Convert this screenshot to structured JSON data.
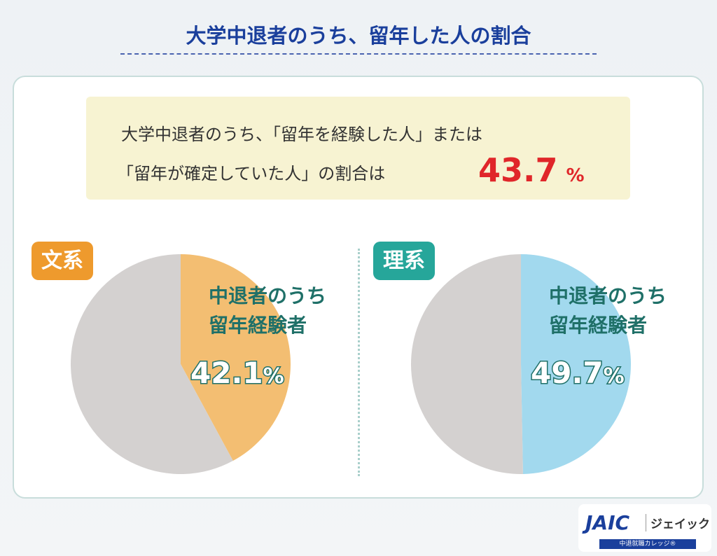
{
  "title": "大学中退者のうち、留年した人の割合",
  "summary": {
    "line1": "大学中退者のうち、「留年を経験した人」または",
    "line2": "「留年が確定していた人」の割合は",
    "value": "43.7",
    "unit": "%"
  },
  "chart_data": [
    {
      "type": "pie",
      "category": "文系",
      "label": "中退者のうち\n留年経験者",
      "label_line1": "中退者のうち",
      "label_line2": "留年経験者",
      "value": 42.1,
      "value_text": "42.1",
      "unit": "%",
      "slices": [
        {
          "value": 42.1,
          "color": "#f3be72"
        },
        {
          "value": 57.9,
          "color": "#d4d1d0"
        }
      ],
      "badge_color": "#ee9a2d"
    },
    {
      "type": "pie",
      "category": "理系",
      "label_line1": "中退者のうち",
      "label_line2": "留年経験者",
      "value": 49.7,
      "value_text": "49.7",
      "unit": "%",
      "slices": [
        {
          "value": 49.7,
          "color": "#a2d9ee"
        },
        {
          "value": 50.3,
          "color": "#d4d1d0"
        }
      ],
      "badge_color": "#26a69a"
    }
  ],
  "logo": {
    "brand": "JAIC",
    "kana": "ジェイック",
    "tagline": "中退就職カレッジ®"
  }
}
